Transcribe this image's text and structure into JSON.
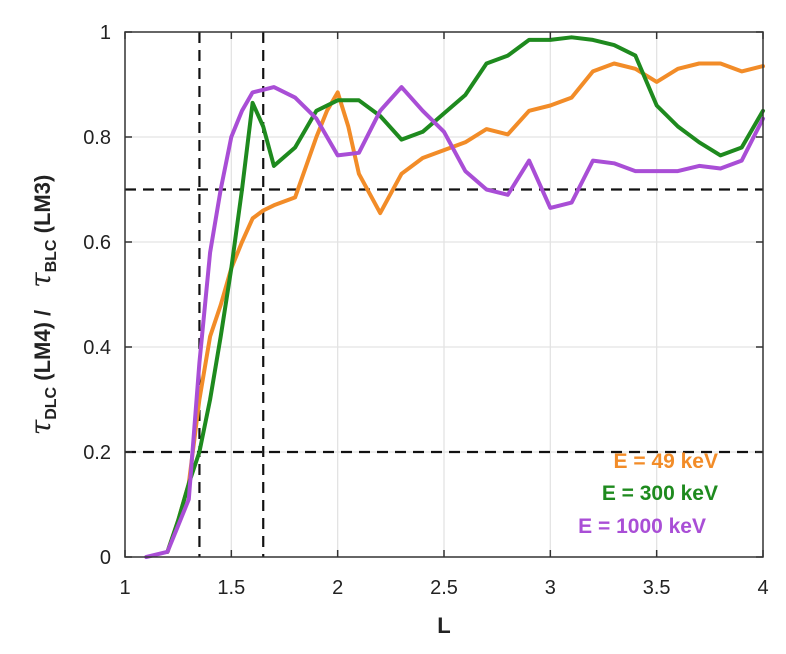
{
  "chart_data": {
    "type": "line",
    "title": "",
    "xlabel": "L",
    "ylabel": {
      "part1_symbol": "τ",
      "part1_sub": "DLC",
      "part1_suffix": " (LM4) /",
      "part2_symbol": "τ",
      "part2_sub": "BLC",
      "part2_suffix": " (LM3)"
    },
    "xlim": [
      1,
      4
    ],
    "ylim": [
      0,
      1
    ],
    "xticks": [
      1,
      1.5,
      2,
      2.5,
      3,
      3.5,
      4
    ],
    "xtick_labels": [
      "1",
      "1.5",
      "2",
      "2.5",
      "3",
      "3.5",
      "4"
    ],
    "yticks": [
      0,
      0.2,
      0.4,
      0.6,
      0.8,
      1
    ],
    "ytick_labels": [
      "0",
      "0.2",
      "0.4",
      "0.6",
      "0.8",
      "1"
    ],
    "grid": true,
    "reference_lines": {
      "vertical": [
        1.35,
        1.65
      ],
      "horizontal": [
        0.2,
        0.7
      ]
    },
    "legend_position": "bottom-right",
    "series": [
      {
        "name": "E = 49 keV",
        "color": "#f28c28",
        "x": [
          1.2,
          1.25,
          1.3,
          1.35,
          1.4,
          1.45,
          1.5,
          1.55,
          1.6,
          1.65,
          1.7,
          1.8,
          1.9,
          1.95,
          2.0,
          2.05,
          2.1,
          2.2,
          2.3,
          2.4,
          2.5,
          2.6,
          2.7,
          2.8,
          2.9,
          3.0,
          3.1,
          3.2,
          3.3,
          3.4,
          3.5,
          3.6,
          3.7,
          3.8,
          3.9,
          4.0
        ],
        "values": [
          0.01,
          0.07,
          0.14,
          0.3,
          0.42,
          0.48,
          0.55,
          0.6,
          0.645,
          0.66,
          0.67,
          0.685,
          0.8,
          0.85,
          0.885,
          0.82,
          0.73,
          0.655,
          0.73,
          0.76,
          0.775,
          0.79,
          0.815,
          0.805,
          0.85,
          0.86,
          0.875,
          0.925,
          0.94,
          0.93,
          0.905,
          0.93,
          0.94,
          0.94,
          0.925,
          0.935
        ]
      },
      {
        "name": "E = 300 keV",
        "color": "#1e8a1e",
        "x": [
          1.2,
          1.25,
          1.3,
          1.35,
          1.4,
          1.45,
          1.5,
          1.55,
          1.6,
          1.65,
          1.7,
          1.8,
          1.9,
          2.0,
          2.1,
          2.2,
          2.3,
          2.4,
          2.5,
          2.6,
          2.7,
          2.8,
          2.9,
          3.0,
          3.1,
          3.2,
          3.3,
          3.4,
          3.5,
          3.6,
          3.7,
          3.8,
          3.9,
          4.0
        ],
        "values": [
          0.01,
          0.07,
          0.14,
          0.2,
          0.3,
          0.42,
          0.55,
          0.7,
          0.865,
          0.82,
          0.745,
          0.78,
          0.85,
          0.87,
          0.87,
          0.84,
          0.795,
          0.81,
          0.845,
          0.88,
          0.94,
          0.955,
          0.985,
          0.985,
          0.99,
          0.985,
          0.975,
          0.955,
          0.86,
          0.82,
          0.79,
          0.765,
          0.78,
          0.85
        ]
      },
      {
        "name": "E = 1000 keV",
        "color": "#a94ed6",
        "x": [
          1.1,
          1.2,
          1.25,
          1.3,
          1.35,
          1.4,
          1.45,
          1.5,
          1.55,
          1.6,
          1.65,
          1.7,
          1.8,
          1.9,
          2.0,
          2.1,
          2.2,
          2.3,
          2.4,
          2.5,
          2.6,
          2.7,
          2.8,
          2.9,
          3.0,
          3.1,
          3.2,
          3.3,
          3.4,
          3.5,
          3.6,
          3.7,
          3.8,
          3.9,
          4.0
        ],
        "values": [
          0.0,
          0.01,
          0.06,
          0.11,
          0.37,
          0.58,
          0.7,
          0.8,
          0.85,
          0.885,
          0.89,
          0.895,
          0.875,
          0.835,
          0.765,
          0.77,
          0.85,
          0.895,
          0.85,
          0.81,
          0.735,
          0.7,
          0.69,
          0.755,
          0.665,
          0.675,
          0.755,
          0.75,
          0.735,
          0.735,
          0.735,
          0.745,
          0.74,
          0.755,
          0.835
        ]
      }
    ]
  }
}
